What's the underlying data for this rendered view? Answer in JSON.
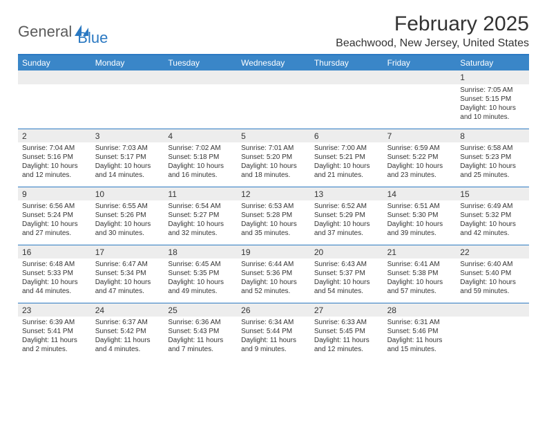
{
  "logo": {
    "text1": "General",
    "text2": "Blue",
    "text1_color": "#5a5a5a",
    "text2_color": "#2b79c2",
    "mark_fill": "#2b79c2"
  },
  "title": "February 2025",
  "location": "Beachwood, New Jersey, United States",
  "colors": {
    "header_bar": "#3a86c8",
    "header_text": "#ffffff",
    "rule": "#2b79c2",
    "daynum_bg": "#ededed",
    "body_text": "#333333",
    "page_bg": "#ffffff"
  },
  "weekdays": [
    "Sunday",
    "Monday",
    "Tuesday",
    "Wednesday",
    "Thursday",
    "Friday",
    "Saturday"
  ],
  "weeks": [
    [
      {
        "n": "",
        "sunrise": "",
        "sunset": "",
        "daylight": ""
      },
      {
        "n": "",
        "sunrise": "",
        "sunset": "",
        "daylight": ""
      },
      {
        "n": "",
        "sunrise": "",
        "sunset": "",
        "daylight": ""
      },
      {
        "n": "",
        "sunrise": "",
        "sunset": "",
        "daylight": ""
      },
      {
        "n": "",
        "sunrise": "",
        "sunset": "",
        "daylight": ""
      },
      {
        "n": "",
        "sunrise": "",
        "sunset": "",
        "daylight": ""
      },
      {
        "n": "1",
        "sunrise": "Sunrise: 7:05 AM",
        "sunset": "Sunset: 5:15 PM",
        "daylight": "Daylight: 10 hours and 10 minutes."
      }
    ],
    [
      {
        "n": "2",
        "sunrise": "Sunrise: 7:04 AM",
        "sunset": "Sunset: 5:16 PM",
        "daylight": "Daylight: 10 hours and 12 minutes."
      },
      {
        "n": "3",
        "sunrise": "Sunrise: 7:03 AM",
        "sunset": "Sunset: 5:17 PM",
        "daylight": "Daylight: 10 hours and 14 minutes."
      },
      {
        "n": "4",
        "sunrise": "Sunrise: 7:02 AM",
        "sunset": "Sunset: 5:18 PM",
        "daylight": "Daylight: 10 hours and 16 minutes."
      },
      {
        "n": "5",
        "sunrise": "Sunrise: 7:01 AM",
        "sunset": "Sunset: 5:20 PM",
        "daylight": "Daylight: 10 hours and 18 minutes."
      },
      {
        "n": "6",
        "sunrise": "Sunrise: 7:00 AM",
        "sunset": "Sunset: 5:21 PM",
        "daylight": "Daylight: 10 hours and 21 minutes."
      },
      {
        "n": "7",
        "sunrise": "Sunrise: 6:59 AM",
        "sunset": "Sunset: 5:22 PM",
        "daylight": "Daylight: 10 hours and 23 minutes."
      },
      {
        "n": "8",
        "sunrise": "Sunrise: 6:58 AM",
        "sunset": "Sunset: 5:23 PM",
        "daylight": "Daylight: 10 hours and 25 minutes."
      }
    ],
    [
      {
        "n": "9",
        "sunrise": "Sunrise: 6:56 AM",
        "sunset": "Sunset: 5:24 PM",
        "daylight": "Daylight: 10 hours and 27 minutes."
      },
      {
        "n": "10",
        "sunrise": "Sunrise: 6:55 AM",
        "sunset": "Sunset: 5:26 PM",
        "daylight": "Daylight: 10 hours and 30 minutes."
      },
      {
        "n": "11",
        "sunrise": "Sunrise: 6:54 AM",
        "sunset": "Sunset: 5:27 PM",
        "daylight": "Daylight: 10 hours and 32 minutes."
      },
      {
        "n": "12",
        "sunrise": "Sunrise: 6:53 AM",
        "sunset": "Sunset: 5:28 PM",
        "daylight": "Daylight: 10 hours and 35 minutes."
      },
      {
        "n": "13",
        "sunrise": "Sunrise: 6:52 AM",
        "sunset": "Sunset: 5:29 PM",
        "daylight": "Daylight: 10 hours and 37 minutes."
      },
      {
        "n": "14",
        "sunrise": "Sunrise: 6:51 AM",
        "sunset": "Sunset: 5:30 PM",
        "daylight": "Daylight: 10 hours and 39 minutes."
      },
      {
        "n": "15",
        "sunrise": "Sunrise: 6:49 AM",
        "sunset": "Sunset: 5:32 PM",
        "daylight": "Daylight: 10 hours and 42 minutes."
      }
    ],
    [
      {
        "n": "16",
        "sunrise": "Sunrise: 6:48 AM",
        "sunset": "Sunset: 5:33 PM",
        "daylight": "Daylight: 10 hours and 44 minutes."
      },
      {
        "n": "17",
        "sunrise": "Sunrise: 6:47 AM",
        "sunset": "Sunset: 5:34 PM",
        "daylight": "Daylight: 10 hours and 47 minutes."
      },
      {
        "n": "18",
        "sunrise": "Sunrise: 6:45 AM",
        "sunset": "Sunset: 5:35 PM",
        "daylight": "Daylight: 10 hours and 49 minutes."
      },
      {
        "n": "19",
        "sunrise": "Sunrise: 6:44 AM",
        "sunset": "Sunset: 5:36 PM",
        "daylight": "Daylight: 10 hours and 52 minutes."
      },
      {
        "n": "20",
        "sunrise": "Sunrise: 6:43 AM",
        "sunset": "Sunset: 5:37 PM",
        "daylight": "Daylight: 10 hours and 54 minutes."
      },
      {
        "n": "21",
        "sunrise": "Sunrise: 6:41 AM",
        "sunset": "Sunset: 5:38 PM",
        "daylight": "Daylight: 10 hours and 57 minutes."
      },
      {
        "n": "22",
        "sunrise": "Sunrise: 6:40 AM",
        "sunset": "Sunset: 5:40 PM",
        "daylight": "Daylight: 10 hours and 59 minutes."
      }
    ],
    [
      {
        "n": "23",
        "sunrise": "Sunrise: 6:39 AM",
        "sunset": "Sunset: 5:41 PM",
        "daylight": "Daylight: 11 hours and 2 minutes."
      },
      {
        "n": "24",
        "sunrise": "Sunrise: 6:37 AM",
        "sunset": "Sunset: 5:42 PM",
        "daylight": "Daylight: 11 hours and 4 minutes."
      },
      {
        "n": "25",
        "sunrise": "Sunrise: 6:36 AM",
        "sunset": "Sunset: 5:43 PM",
        "daylight": "Daylight: 11 hours and 7 minutes."
      },
      {
        "n": "26",
        "sunrise": "Sunrise: 6:34 AM",
        "sunset": "Sunset: 5:44 PM",
        "daylight": "Daylight: 11 hours and 9 minutes."
      },
      {
        "n": "27",
        "sunrise": "Sunrise: 6:33 AM",
        "sunset": "Sunset: 5:45 PM",
        "daylight": "Daylight: 11 hours and 12 minutes."
      },
      {
        "n": "28",
        "sunrise": "Sunrise: 6:31 AM",
        "sunset": "Sunset: 5:46 PM",
        "daylight": "Daylight: 11 hours and 15 minutes."
      },
      {
        "n": "",
        "sunrise": "",
        "sunset": "",
        "daylight": ""
      }
    ]
  ]
}
